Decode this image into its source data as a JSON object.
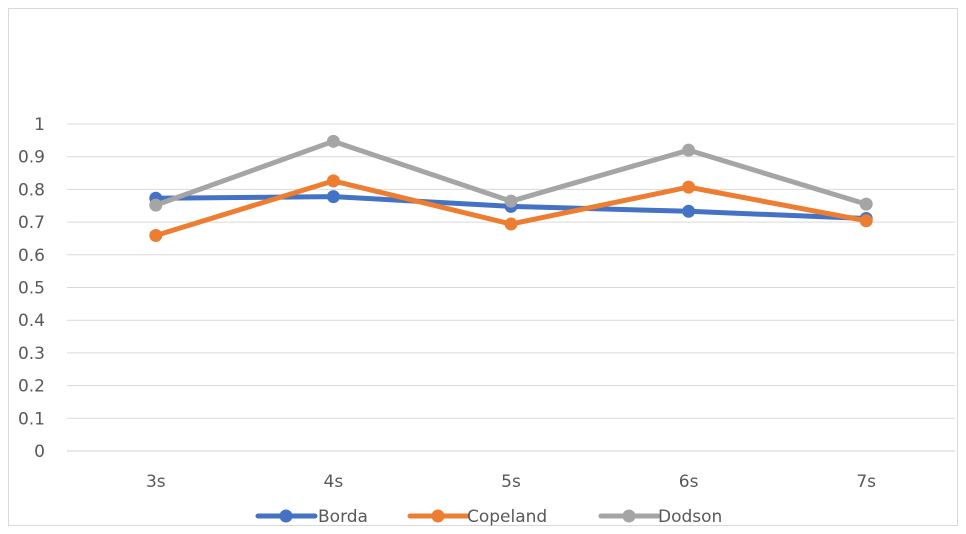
{
  "chart_data": {
    "type": "line",
    "title": "",
    "xlabel": "",
    "ylabel": "",
    "categories": [
      "3s",
      "4s",
      "5s",
      "6s",
      "7s"
    ],
    "ylim": [
      0,
      1
    ],
    "yticks": [
      "0",
      "0.1",
      "0.2",
      "0.3",
      "0.4",
      "0.5",
      "0.6",
      "0.7",
      "0.8",
      "0.9",
      "1"
    ],
    "grid": true,
    "legend": "bottom",
    "markers": true,
    "series": [
      {
        "name": "Borda",
        "color": "#4472C4",
        "values": [
          0.773,
          0.778,
          0.748,
          0.733,
          0.711
        ]
      },
      {
        "name": "Copeland",
        "color": "#ED7D31",
        "values": [
          0.659,
          0.826,
          0.694,
          0.807,
          0.704
        ]
      },
      {
        "name": "Dodson",
        "color": "#A5A5A5",
        "values": [
          0.752,
          0.947,
          0.764,
          0.92,
          0.755
        ]
      }
    ]
  }
}
